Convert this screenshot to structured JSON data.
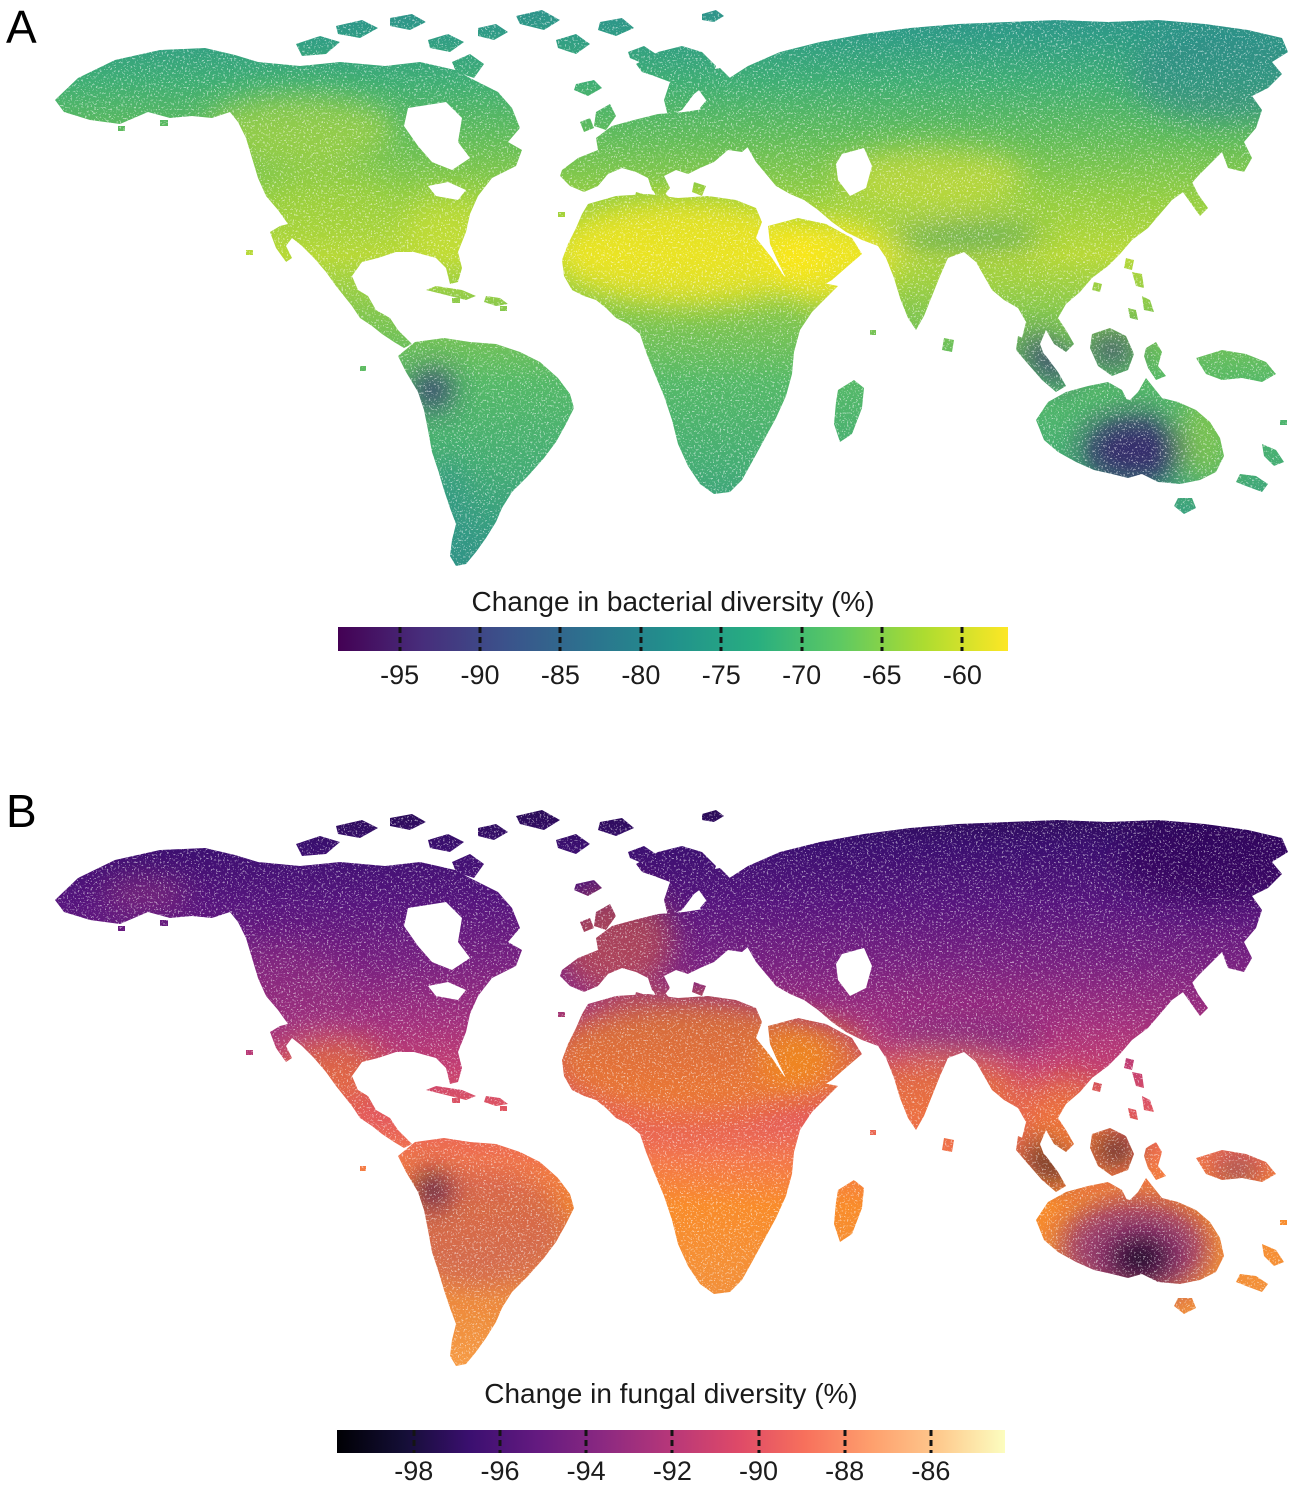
{
  "figure": {
    "panels": [
      {
        "label": "A",
        "map_kind": "global raster world map",
        "colorbar": {
          "title": "Change in bacterial diversity (%)",
          "tick_labels": [
            "-95",
            "-90",
            "-85",
            "-80",
            "-75",
            "-70",
            "-65",
            "-60"
          ],
          "colormap": "viridis",
          "gradient_stops": [
            "#440154",
            "#472d7b",
            "#3b528b",
            "#2c728e",
            "#21918c",
            "#28ae80",
            "#5ec962",
            "#addc30",
            "#fde725"
          ]
        }
      },
      {
        "label": "B",
        "map_kind": "global raster world map",
        "colorbar": {
          "title": "Change in fungal diversity (%)",
          "tick_labels": [
            "-98",
            "-96",
            "-94",
            "-92",
            "-90",
            "-88",
            "-86"
          ],
          "colormap": "magma",
          "gradient_stops": [
            "#000004",
            "#140e36",
            "#3b0f70",
            "#641a80",
            "#8c2981",
            "#b73779",
            "#de4968",
            "#f7705c",
            "#fe9f6d",
            "#fec98d",
            "#fcfdbf"
          ]
        }
      }
    ]
  },
  "chart_data": [
    {
      "type": "heatmap",
      "subtype": "choropleth-world-map",
      "panel": "A",
      "title": "Change in bacterial diversity (%)",
      "colormap": "viridis",
      "colorbar_tick_values": [
        -95,
        -90,
        -85,
        -80,
        -75,
        -70,
        -65,
        -60
      ],
      "approx_value_range_shown": [
        -99,
        -57
      ],
      "legend_position": "bottom",
      "notes": "All land negative. Deserts (Sahara, Arabia, central Asia, US southeast, central Canada) near -60 (yellow); most land -80 to -65 (green/teal); darkest values (about -95) in central Australia, Sumatra/Borneo and the western Amazon (Peru); high northern latitudes and Patagonia teal (about -75 to -80)."
    },
    {
      "type": "heatmap",
      "subtype": "choropleth-world-map",
      "panel": "B",
      "title": "Change in fungal diversity (%)",
      "colormap": "magma",
      "colorbar_tick_values": [
        -98,
        -96,
        -94,
        -92,
        -90,
        -88,
        -86
      ],
      "approx_value_range_shown": [
        -100,
        -84
      ],
      "legend_position": "bottom",
      "notes": "Strong latitudinal gradient: high northern latitudes darkest (about -98, purple/black); mid-latitudes magenta (about -92); tropics and deserts orange (about -88 to -86); darkest spots (about -99) in central Australia, Indonesia and the western Amazon; western Europe and Patagonia orange."
    }
  ]
}
